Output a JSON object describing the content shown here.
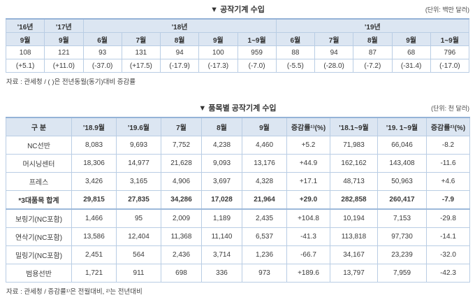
{
  "table1": {
    "title": "▼ 공작기계 수입",
    "unit": "(단위: 백만 달러)",
    "col_groups": [
      {
        "label": "'16년",
        "span": 1
      },
      {
        "label": "'17년",
        "span": 1
      },
      {
        "label": "'18년",
        "span": 5
      },
      {
        "label": "'19년",
        "span": 5
      }
    ],
    "months": [
      "9월",
      "9월",
      "6월",
      "7월",
      "8월",
      "9월",
      "1~9월",
      "6월",
      "7월",
      "8월",
      "9월",
      "1~9월"
    ],
    "values": [
      "108",
      "121",
      "93",
      "131",
      "94",
      "100",
      "959",
      "88",
      "94",
      "87",
      "68",
      "796"
    ],
    "changes": [
      "(+5.1)",
      "(+11.0)",
      "(-37.0)",
      "(+17.5)",
      "(-17.9)",
      "(-17.3)",
      "(-7.0)",
      "(-5.5)",
      "(-28.0)",
      "(-7.2)",
      "(-31.4)",
      "(-17.0)"
    ],
    "source": "자료 : 관세청 / (  )은 전년동월(동기)대비 증감률"
  },
  "table2": {
    "title": "▼ 품목별 공작기계 수입",
    "unit": "(단위: 천 달러)",
    "headers": [
      "구 분",
      "'18.9월",
      "'19.6월",
      "7월",
      "8월",
      "9월",
      "증감률¹⁾(%)",
      "'18.1~9월",
      "'19. 1~9월",
      "증감률²⁾(%)"
    ],
    "rows": [
      {
        "label": "NC선반",
        "cells": [
          "8,083",
          "9,693",
          "7,752",
          "4,238",
          "4,460",
          "+5.2",
          "71,983",
          "66,046",
          "-8.2"
        ],
        "bold": false,
        "sep": false
      },
      {
        "label": "머시닝센터",
        "cells": [
          "18,306",
          "14,977",
          "21,628",
          "9,093",
          "13,176",
          "+44.9",
          "162,162",
          "143,408",
          "-11.6"
        ],
        "bold": false,
        "sep": false
      },
      {
        "label": "프레스",
        "cells": [
          "3,426",
          "3,165",
          "4,906",
          "3,697",
          "4,328",
          "+17.1",
          "48,713",
          "50,963",
          "+4.6"
        ],
        "bold": false,
        "sep": false
      },
      {
        "label": "*3대품목 합계",
        "cells": [
          "29,815",
          "27,835",
          "34,286",
          "17,028",
          "21,964",
          "+29.0",
          "282,858",
          "260,417",
          "-7.9"
        ],
        "bold": true,
        "sep": false
      },
      {
        "label": "보링기(NC포함)",
        "cells": [
          "1,466",
          "95",
          "2,009",
          "1,189",
          "2,435",
          "+104.8",
          "10,194",
          "7,153",
          "-29.8"
        ],
        "bold": false,
        "sep": true
      },
      {
        "label": "연삭기(NC포함)",
        "cells": [
          "13,586",
          "12,404",
          "11,368",
          "11,140",
          "6,537",
          "-41.3",
          "113,818",
          "97,730",
          "-14.1"
        ],
        "bold": false,
        "sep": false
      },
      {
        "label": "밀링기(NC포함)",
        "cells": [
          "2,451",
          "564",
          "2,436",
          "3,714",
          "1,236",
          "-66.7",
          "34,167",
          "23,239",
          "-32.0"
        ],
        "bold": false,
        "sep": false
      },
      {
        "label": "범용선반",
        "cells": [
          "1,721",
          "911",
          "698",
          "336",
          "973",
          "+189.6",
          "13,797",
          "7,959",
          "-42.3"
        ],
        "bold": false,
        "sep": false
      }
    ],
    "source": "자료 : 관세청 / 증감률¹⁾은 전월대비, ²⁾는 전년대비"
  }
}
